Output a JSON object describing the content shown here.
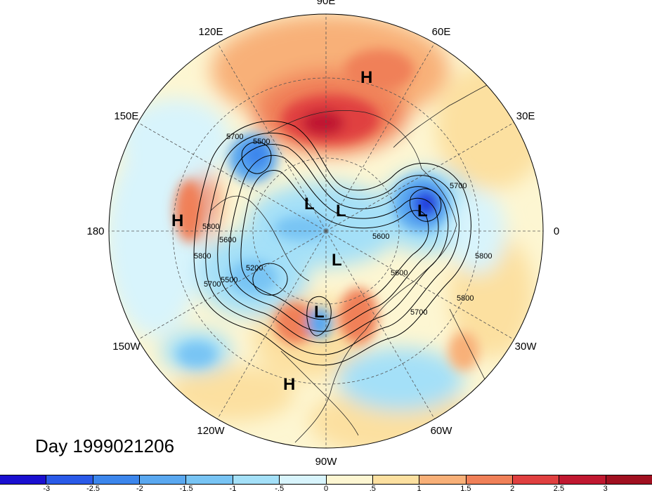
{
  "title": "Day 1999021206",
  "longitude_labels": [
    {
      "text": "90E",
      "lon": 90
    },
    {
      "text": "60E",
      "lon": 60
    },
    {
      "text": "30E",
      "lon": 30
    },
    {
      "text": "0",
      "lon": 0
    },
    {
      "text": "30W",
      "lon": -30
    },
    {
      "text": "60W",
      "lon": -60
    },
    {
      "text": "90W",
      "lon": -90
    },
    {
      "text": "120W",
      "lon": -120
    },
    {
      "text": "150W",
      "lon": -150
    },
    {
      "text": "180",
      "lon": 180
    },
    {
      "text": "150E",
      "lon": 150
    },
    {
      "text": "120E",
      "lon": 120
    }
  ],
  "contour_labels": [
    "5700",
    "5500",
    "5800",
    "5800",
    "5600",
    "5700",
    "5500",
    "5200",
    "5700",
    "5600",
    "5800",
    "5800",
    "5700",
    "5600"
  ],
  "pressure_centers": [
    {
      "type": "H",
      "text": "H"
    },
    {
      "type": "H",
      "text": "H"
    },
    {
      "type": "H",
      "text": "H"
    },
    {
      "type": "L",
      "text": "L"
    },
    {
      "type": "L",
      "text": "L"
    },
    {
      "type": "L",
      "text": "L"
    },
    {
      "type": "L",
      "text": "L"
    },
    {
      "type": "L",
      "text": "L"
    }
  ],
  "colorbar": {
    "tick_labels": [
      "-3",
      "-2.5",
      "-2",
      "-1.5",
      "-1",
      "-.5",
      "0",
      ".5",
      "1",
      "1.5",
      "2",
      "2.5",
      "3"
    ],
    "colors": [
      "#1a0fd0",
      "#2a5ae8",
      "#3c86ec",
      "#5aa8f0",
      "#78c4f4",
      "#a4e0f8",
      "#d8f4fc",
      "#fdf6d2",
      "#fce0a0",
      "#f8b078",
      "#f08058",
      "#e04040",
      "#c01830",
      "#a01020"
    ]
  }
}
